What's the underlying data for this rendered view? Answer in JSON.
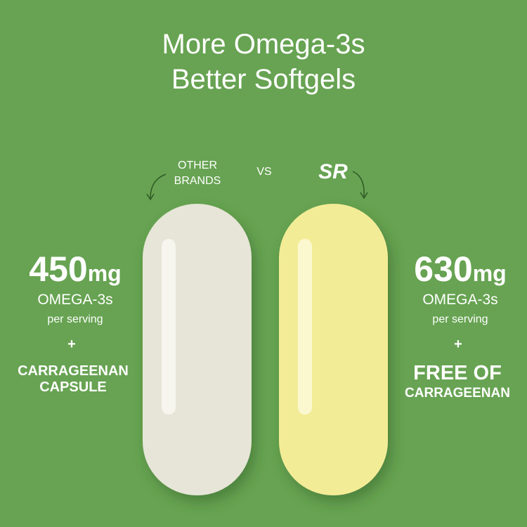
{
  "header": {
    "title_lines": [
      "More Omega-3s",
      "Better Softgels"
    ]
  },
  "comparison": {
    "left_label": [
      "OTHER",
      "BRANDS"
    ],
    "versus": "VS",
    "right_logo": "SR"
  },
  "left": {
    "amount": 450,
    "unit": "mg",
    "nutrient": "OMEGA-3s",
    "basis": "per serving",
    "plus": "+",
    "feature_lines": [
      "CARRAGEENAN",
      "CAPSULE"
    ]
  },
  "right": {
    "amount": 630,
    "unit": "mg",
    "nutrient": "OMEGA-3s",
    "basis": "per serving",
    "plus": "+",
    "feature_lines": [
      "FREE OF",
      "CARRAGEENAN"
    ]
  }
}
